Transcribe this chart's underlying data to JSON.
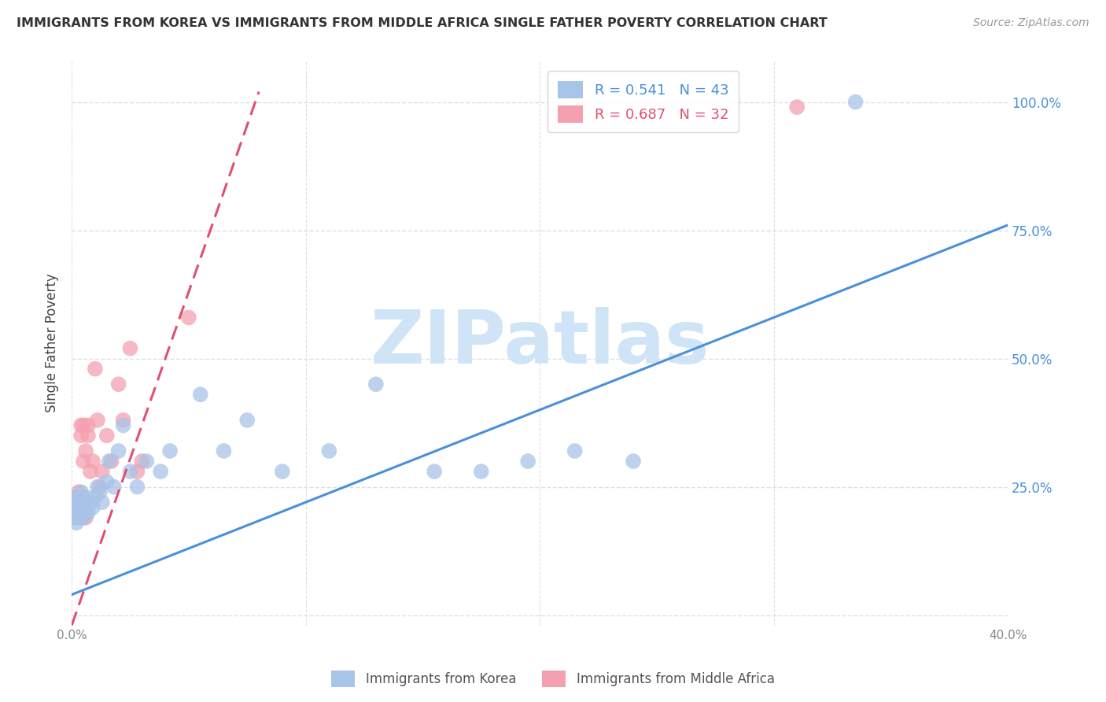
{
  "title": "IMMIGRANTS FROM KOREA VS IMMIGRANTS FROM MIDDLE AFRICA SINGLE FATHER POVERTY CORRELATION CHART",
  "source": "Source: ZipAtlas.com",
  "ylabel": "Single Father Poverty",
  "xlabel": "",
  "xlim": [
    0.0,
    0.4
  ],
  "ylim": [
    -0.02,
    1.08
  ],
  "xticks": [
    0.0,
    0.1,
    0.2,
    0.3,
    0.4
  ],
  "xtick_labels": [
    "0.0%",
    "",
    "",
    "",
    "40.0%"
  ],
  "yticks": [
    0.0,
    0.25,
    0.5,
    0.75,
    1.0
  ],
  "ytick_labels": [
    "",
    "25.0%",
    "50.0%",
    "75.0%",
    "100.0%"
  ],
  "r_korea": 0.541,
  "n_korea": 43,
  "r_africa": 0.687,
  "n_africa": 32,
  "korea_color": "#a8c4e8",
  "africa_color": "#f4a0b0",
  "korea_line_color": "#4a90d9",
  "africa_line_color": "#e05070",
  "korea_line_x0": 0.0,
  "korea_line_y0": 0.04,
  "korea_line_x1": 0.4,
  "korea_line_y1": 0.76,
  "africa_line_x0": 0.0,
  "africa_line_y0": -0.02,
  "africa_line_x1": 0.08,
  "africa_line_y1": 1.02,
  "korea_scatter_x": [
    0.001,
    0.001,
    0.001,
    0.002,
    0.002,
    0.002,
    0.003,
    0.003,
    0.004,
    0.004,
    0.005,
    0.005,
    0.006,
    0.006,
    0.007,
    0.008,
    0.009,
    0.01,
    0.011,
    0.012,
    0.013,
    0.015,
    0.016,
    0.018,
    0.02,
    0.022,
    0.025,
    0.028,
    0.032,
    0.038,
    0.042,
    0.055,
    0.065,
    0.075,
    0.09,
    0.11,
    0.13,
    0.155,
    0.175,
    0.195,
    0.215,
    0.24,
    0.335
  ],
  "korea_scatter_y": [
    0.19,
    0.21,
    0.22,
    0.18,
    0.2,
    0.23,
    0.19,
    0.22,
    0.2,
    0.24,
    0.19,
    0.22,
    0.21,
    0.23,
    0.2,
    0.22,
    0.21,
    0.23,
    0.25,
    0.24,
    0.22,
    0.26,
    0.3,
    0.25,
    0.32,
    0.37,
    0.28,
    0.25,
    0.3,
    0.28,
    0.32,
    0.43,
    0.32,
    0.38,
    0.28,
    0.32,
    0.45,
    0.28,
    0.28,
    0.3,
    0.32,
    0.3,
    1.0
  ],
  "africa_scatter_x": [
    0.001,
    0.001,
    0.002,
    0.002,
    0.003,
    0.003,
    0.003,
    0.004,
    0.004,
    0.004,
    0.005,
    0.005,
    0.005,
    0.006,
    0.006,
    0.007,
    0.007,
    0.008,
    0.009,
    0.01,
    0.011,
    0.012,
    0.013,
    0.015,
    0.017,
    0.02,
    0.022,
    0.025,
    0.028,
    0.03,
    0.05,
    0.31
  ],
  "africa_scatter_y": [
    0.19,
    0.22,
    0.21,
    0.23,
    0.2,
    0.22,
    0.24,
    0.35,
    0.37,
    0.19,
    0.37,
    0.22,
    0.3,
    0.32,
    0.19,
    0.35,
    0.37,
    0.28,
    0.3,
    0.48,
    0.38,
    0.25,
    0.28,
    0.35,
    0.3,
    0.45,
    0.38,
    0.52,
    0.28,
    0.3,
    0.58,
    0.99
  ],
  "watermark_zip": "ZIP",
  "watermark_atlas": "atlas",
  "watermark_color": "#d0e4f7",
  "background_color": "#ffffff",
  "grid_color": "#e0e0e0"
}
